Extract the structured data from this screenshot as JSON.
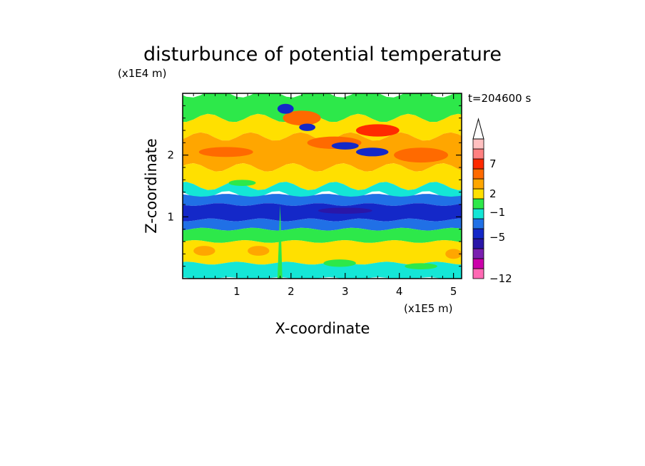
{
  "chart_data": {
    "type": "heatmap",
    "title": "disturbunce of potential temperature",
    "time_label": "t=204600 s",
    "xlabel": "X-coordinate",
    "ylabel": "Z-coordinate",
    "x_unit": "(x1E5 m)",
    "y_unit": "(x1E4 m)",
    "xlim": [
      0,
      5.15
    ],
    "ylim": [
      0,
      3.0
    ],
    "x_ticks": [
      "1",
      "2",
      "3",
      "4",
      "5"
    ],
    "y_ticks": [
      "1",
      "2"
    ],
    "colorbar": {
      "labels": [
        "7",
        "2",
        "−1",
        "−5",
        "−12"
      ],
      "colors": [
        "#ff69b4",
        "#cc00aa",
        "#7a1fb0",
        "#2a16a8",
        "#1428c8",
        "#2070e6",
        "#14e6d6",
        "#2de84a",
        "#ffe000",
        "#ffa600",
        "#ff6a00",
        "#ff2a00",
        "#ff8080",
        "#ffc0c0"
      ],
      "extend_max": true
    },
    "bands": [
      {
        "z": [
          2.6,
          3.0
        ],
        "color": "#2de84a"
      },
      {
        "z": [
          2.3,
          2.6
        ],
        "color": "#ffe000"
      },
      {
        "z": [
          1.8,
          2.3
        ],
        "color": "#ffa600"
      },
      {
        "z": [
          1.5,
          1.8
        ],
        "color": "#ffe000"
      },
      {
        "z": [
          1.35,
          1.5
        ],
        "color": "#14e6d6"
      },
      {
        "z": [
          1.2,
          1.35
        ],
        "color": "#2070e6"
      },
      {
        "z": [
          0.95,
          1.2
        ],
        "color": "#1428c8"
      },
      {
        "z": [
          0.8,
          0.95
        ],
        "color": "#2070e6"
      },
      {
        "z": [
          0.6,
          0.8
        ],
        "color": "#2de84a"
      },
      {
        "z": [
          0.25,
          0.6
        ],
        "color": "#ffe000"
      },
      {
        "z": [
          0.0,
          0.25
        ],
        "color": "#14e6d6"
      }
    ]
  }
}
